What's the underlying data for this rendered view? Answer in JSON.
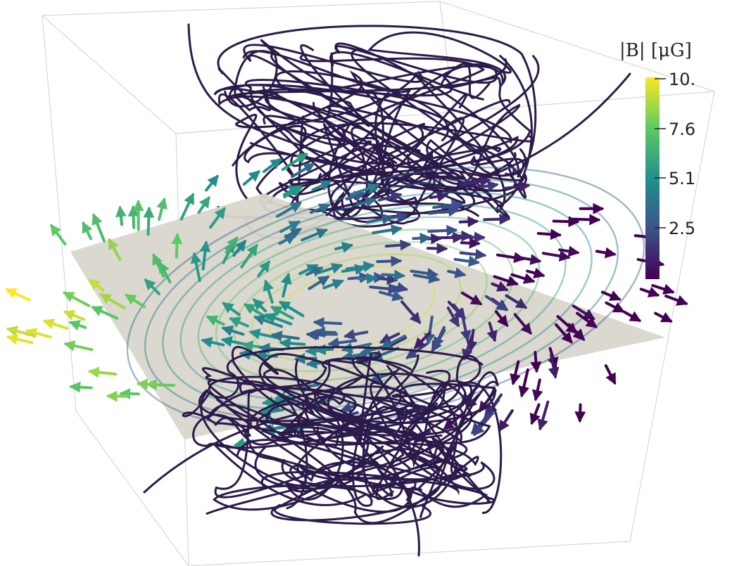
{
  "colorbar": {
    "title": "|B| [μG]",
    "ticks": [
      "10.",
      "7.6",
      "5.1",
      "2.5"
    ],
    "range": [
      0,
      10
    ],
    "colormap": [
      "#440154",
      "#3b528b",
      "#21918c",
      "#5ec962",
      "#fde725"
    ]
  },
  "scene": {
    "background": "#ffffff",
    "plane_color": "#d9d6cc",
    "box_line_color": "#cccccc",
    "field_line_color": "#2b1a4a"
  }
}
